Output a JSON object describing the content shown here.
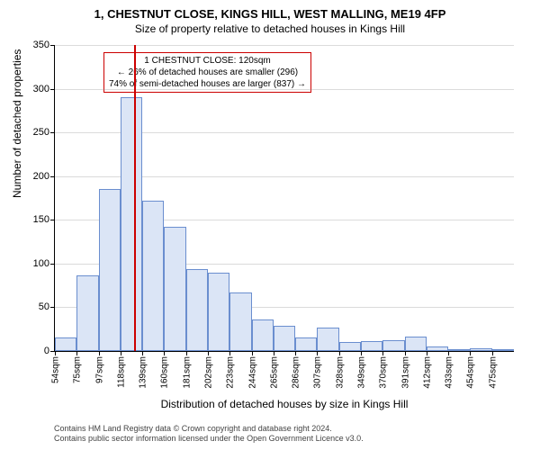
{
  "title_main": "1, CHESTNUT CLOSE, KINGS HILL, WEST MALLING, ME19 4FP",
  "title_sub": "Size of property relative to detached houses in Kings Hill",
  "y_label": "Number of detached properties",
  "x_label": "Distribution of detached houses by size in Kings Hill",
  "chart": {
    "type": "histogram",
    "y_max": 350,
    "y_tick_step": 50,
    "y_ticks": [
      0,
      50,
      100,
      150,
      200,
      250,
      300,
      350
    ],
    "bar_fill": "#dbe5f6",
    "bar_stroke": "#6a8ecf",
    "grid_color": "#888888",
    "marker_color": "#cc0000",
    "marker_x_value": 120,
    "x_start": 44,
    "x_step": 21.07,
    "x_labels": [
      "54sqm",
      "75sqm",
      "97sqm",
      "118sqm",
      "139sqm",
      "160sqm",
      "181sqm",
      "202sqm",
      "223sqm",
      "244sqm",
      "265sqm",
      "286sqm",
      "307sqm",
      "328sqm",
      "349sqm",
      "370sqm",
      "391sqm",
      "412sqm",
      "433sqm",
      "454sqm",
      "475sqm"
    ],
    "bars": [
      15,
      86,
      185,
      290,
      172,
      142,
      94,
      90,
      67,
      36,
      29,
      15,
      27,
      10,
      11,
      12,
      16,
      5,
      0,
      3,
      2
    ]
  },
  "annotation": {
    "line1": "1 CHESTNUT CLOSE: 120sqm",
    "line2": "← 26% of detached houses are smaller (296)",
    "line3": "74% of semi-detached houses are larger (837) →"
  },
  "footer": {
    "line1": "Contains HM Land Registry data © Crown copyright and database right 2024.",
    "line2": "Contains public sector information licensed under the Open Government Licence v3.0."
  },
  "fonts": {
    "title_size": 13,
    "subtitle_size": 12,
    "axis_label_size": 12,
    "tick_size": 11,
    "annotation_size": 10,
    "footer_size": 9
  }
}
